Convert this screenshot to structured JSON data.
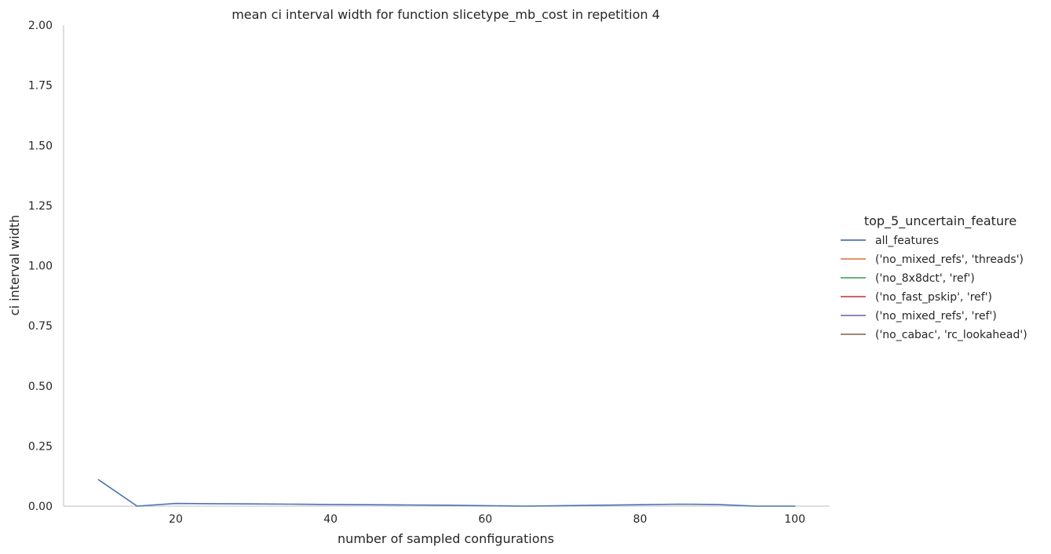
{
  "chart_data": {
    "type": "line",
    "title": "mean ci interval width for function slicetype_mb_cost in repetition 4",
    "xlabel": "number of sampled configurations",
    "ylabel": "ci interval width",
    "xlim": [
      5.5,
      104.5
    ],
    "ylim": [
      0,
      2.0
    ],
    "xticks": [
      "20",
      "40",
      "60",
      "80",
      "100"
    ],
    "xtick_values": [
      20,
      40,
      60,
      80,
      100
    ],
    "yticks": [
      "0.00",
      "0.25",
      "0.50",
      "0.75",
      "1.00",
      "1.25",
      "1.50",
      "1.75",
      "2.00"
    ],
    "ytick_values": [
      0,
      0.25,
      0.5,
      0.75,
      1.0,
      1.25,
      1.5,
      1.75,
      2.0
    ],
    "grid": false,
    "legend": {
      "title": "top_5_uncertain_feature",
      "placement": "right"
    },
    "series": [
      {
        "name": "all_features",
        "color": "#4c72b0",
        "x": [
          10,
          15,
          20,
          25,
          30,
          35,
          40,
          45,
          50,
          55,
          60,
          65,
          70,
          75,
          80,
          85,
          90,
          95,
          100
        ],
        "values": [
          0.11,
          0.0,
          0.011,
          0.01,
          0.009,
          0.008,
          0.007,
          0.006,
          0.005,
          0.004,
          0.002,
          0.0,
          0.002,
          0.004,
          0.006,
          0.008,
          0.007,
          0.0,
          0.0
        ]
      },
      {
        "name": "('no_mixed_refs', 'threads')",
        "color": "#dd8452",
        "x": [],
        "values": []
      },
      {
        "name": "('no_8x8dct', 'ref')",
        "color": "#55a868",
        "x": [],
        "values": []
      },
      {
        "name": "('no_fast_pskip', 'ref')",
        "color": "#c44e52",
        "x": [],
        "values": []
      },
      {
        "name": "('no_mixed_refs', 'ref')",
        "color": "#8172b3",
        "x": [],
        "values": []
      },
      {
        "name": "('no_cabac', 'rc_lookahead')",
        "color": "#937860",
        "x": [],
        "values": []
      }
    ]
  }
}
